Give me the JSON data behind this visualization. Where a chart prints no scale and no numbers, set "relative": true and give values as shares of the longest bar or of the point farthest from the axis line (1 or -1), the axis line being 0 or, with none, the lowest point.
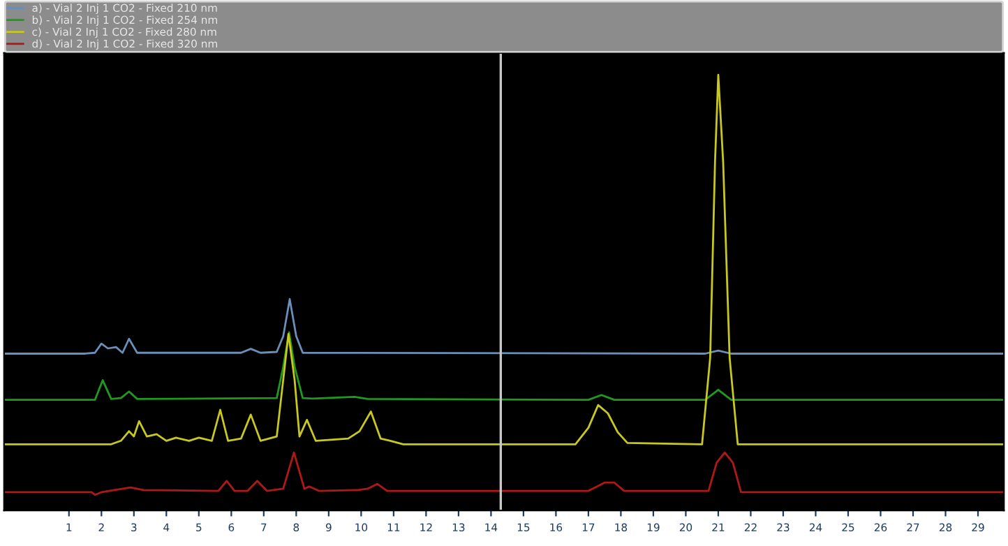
{
  "chart_data": {
    "type": "line",
    "relative": true,
    "legend": "top",
    "grid": false,
    "xlim": [
      -1,
      29.8
    ],
    "xticks": [
      1,
      2,
      3,
      4,
      5,
      6,
      7,
      8,
      9,
      10,
      11,
      12,
      13,
      14,
      15,
      16,
      17,
      18,
      19,
      20,
      21,
      22,
      23,
      24,
      25,
      26,
      27,
      28,
      29
    ],
    "ref_lines": [
      {
        "axis": "x",
        "value": 14.3,
        "color": "#c8c8c8"
      }
    ],
    "series": [
      {
        "name": "a) - Vial 2 Inj 1 CO2 - Fixed 210 nm",
        "color": "#6a8fb8",
        "x": [
          -1,
          1.5,
          1.8,
          2.0,
          2.2,
          2.45,
          2.65,
          2.85,
          3.1,
          6.3,
          6.6,
          6.9,
          7.4,
          7.6,
          7.8,
          8.0,
          8.2,
          20.6,
          21.0,
          21.4,
          29.8
        ],
        "values": [
          0.36,
          0.36,
          0.362,
          0.383,
          0.372,
          0.375,
          0.362,
          0.394,
          0.362,
          0.362,
          0.371,
          0.362,
          0.364,
          0.4,
          0.485,
          0.4,
          0.362,
          0.36,
          0.367,
          0.36,
          0.36
        ]
      },
      {
        "name": "b) - Vial 2 Inj 1 CO2 - Fixed 254 nm",
        "color": "#1f9a1f",
        "x": [
          -1,
          1.8,
          2.04,
          2.3,
          2.6,
          2.85,
          3.1,
          7.4,
          7.6,
          7.78,
          7.95,
          8.2,
          8.5,
          9.8,
          10.2,
          17.0,
          17.4,
          17.8,
          20.6,
          21.0,
          21.4,
          29.8
        ],
        "values": [
          0.254,
          0.254,
          0.299,
          0.256,
          0.258,
          0.273,
          0.256,
          0.258,
          0.33,
          0.409,
          0.33,
          0.258,
          0.257,
          0.261,
          0.256,
          0.254,
          0.265,
          0.254,
          0.254,
          0.277,
          0.254,
          0.254
        ]
      },
      {
        "name": "c) - Vial 2 Inj 1 CO2 - Fixed 280 nm",
        "color": "#c8c81e",
        "x": [
          -1,
          2.3,
          2.6,
          2.85,
          3.0,
          3.16,
          3.4,
          3.7,
          4.0,
          4.3,
          4.7,
          5.0,
          5.4,
          5.66,
          5.9,
          6.3,
          6.6,
          6.9,
          7.4,
          7.6,
          7.76,
          7.95,
          8.1,
          8.33,
          8.6,
          9.6,
          9.95,
          10.3,
          10.6,
          10.9,
          11.3,
          16.6,
          17.0,
          17.3,
          17.6,
          17.9,
          18.2,
          20.5,
          20.75,
          20.9,
          21.0,
          21.15,
          21.35,
          21.6,
          29.8
        ],
        "values": [
          0.152,
          0.152,
          0.16,
          0.182,
          0.17,
          0.205,
          0.17,
          0.175,
          0.16,
          0.167,
          0.16,
          0.167,
          0.16,
          0.231,
          0.16,
          0.165,
          0.22,
          0.16,
          0.17,
          0.3,
          0.405,
          0.3,
          0.17,
          0.208,
          0.16,
          0.165,
          0.182,
          0.227,
          0.165,
          0.16,
          0.152,
          0.152,
          0.19,
          0.242,
          0.223,
          0.18,
          0.155,
          0.152,
          0.35,
          0.8,
          1.0,
          0.8,
          0.35,
          0.152,
          0.152
        ]
      },
      {
        "name": "d) - Vial 2 Inj 1 CO2 - Fixed 320 nm",
        "color": "#b01818",
        "x": [
          -1,
          1.7,
          1.8,
          2.0,
          2.4,
          2.9,
          3.3,
          5.6,
          5.86,
          6.1,
          6.5,
          6.8,
          7.1,
          7.6,
          7.93,
          8.25,
          8.4,
          8.7,
          9.9,
          10.2,
          10.5,
          10.8,
          17.0,
          17.5,
          17.8,
          18.1,
          20.7,
          20.95,
          21.2,
          21.45,
          21.7,
          29.8
        ],
        "values": [
          0.042,
          0.042,
          0.036,
          0.042,
          0.047,
          0.053,
          0.047,
          0.045,
          0.068,
          0.045,
          0.045,
          0.068,
          0.045,
          0.05,
          0.133,
          0.05,
          0.055,
          0.045,
          0.047,
          0.05,
          0.061,
          0.045,
          0.045,
          0.064,
          0.064,
          0.045,
          0.045,
          0.11,
          0.133,
          0.11,
          0.042,
          0.042
        ]
      }
    ]
  }
}
